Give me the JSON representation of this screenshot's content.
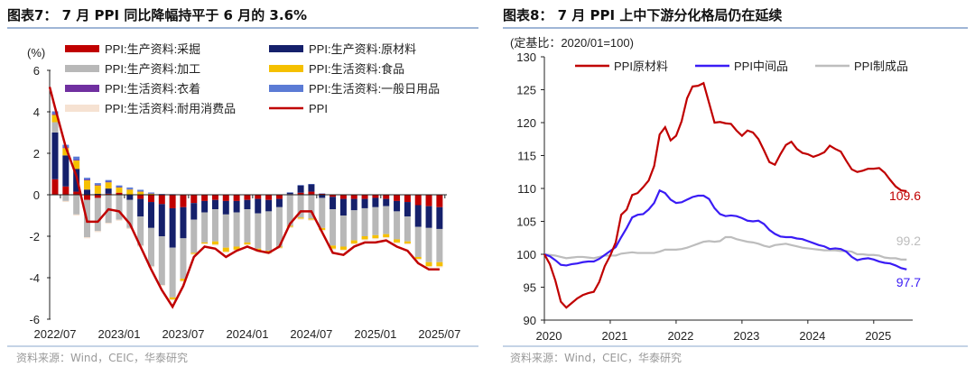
{
  "left": {
    "title": "图表7：  7 月 PPI 同比降幅持平于 6 月的 3.6%",
    "source": "资料来源：Wind，CEIC，华泰研究"
  },
  "right": {
    "title": "图表8：  7 月 PPI 上中下游分化格局仍在延续",
    "source": "资料来源：Wind，CEIC，华泰研究"
  },
  "chart_data": [
    {
      "type": "bar",
      "stacked": true,
      "ylabel": "(%)",
      "ylim": [
        -6,
        6
      ],
      "yticks": [
        -6,
        -4,
        -2,
        0,
        2,
        4,
        6
      ],
      "categories": [
        "2022/07",
        "2022/08",
        "2022/09",
        "2022/10",
        "2022/11",
        "2022/12",
        "2023/01",
        "2023/02",
        "2023/03",
        "2023/04",
        "2023/05",
        "2023/06",
        "2023/07",
        "2023/08",
        "2023/09",
        "2023/10",
        "2023/11",
        "2023/12",
        "2024/01",
        "2024/02",
        "2024/03",
        "2024/04",
        "2024/05",
        "2024/06",
        "2024/07",
        "2024/08",
        "2024/09",
        "2024/10",
        "2024/11",
        "2024/12",
        "2025/01",
        "2025/02",
        "2025/03",
        "2025/04",
        "2025/05",
        "2025/06",
        "2025/07"
      ],
      "xticks": [
        "2022/07",
        "2023/01",
        "2023/07",
        "2024/01",
        "2024/07",
        "2025/01",
        "2025/07"
      ],
      "legend_placement": "top",
      "series": [
        {
          "name": "PPI:生产资料:采掘",
          "color": "#c00000",
          "values": [
            0.75,
            0.4,
            0.15,
            -0.25,
            -0.15,
            0.05,
            0.1,
            0,
            -0.2,
            -0.35,
            -0.45,
            -0.65,
            -0.6,
            -0.4,
            -0.3,
            -0.25,
            -0.3,
            -0.3,
            -0.25,
            -0.2,
            -0.25,
            -0.2,
            0.03,
            0.1,
            0.15,
            0.05,
            -0.1,
            -0.2,
            -0.2,
            -0.2,
            -0.15,
            -0.2,
            -0.3,
            -0.35,
            -0.5,
            -0.55,
            -0.6
          ]
        },
        {
          "name": "PPI:生产资料:原材料",
          "color": "#15206b",
          "values": [
            2.25,
            1.5,
            1.1,
            0.25,
            0.05,
            0.25,
            0,
            -0.25,
            -0.85,
            -1.25,
            -1.55,
            -1.9,
            -1.5,
            -0.8,
            -0.55,
            -0.45,
            -0.65,
            -0.55,
            -0.45,
            -0.7,
            -0.55,
            -0.4,
            0.07,
            0.35,
            0.35,
            -0.15,
            -0.6,
            -0.8,
            -0.55,
            -0.45,
            -0.45,
            -0.35,
            -0.5,
            -0.7,
            -1.05,
            -1.05,
            -1.05
          ]
        },
        {
          "name": "PPI:生产资料:加工",
          "color": "#b8b8b8",
          "values": [
            0.5,
            -0.3,
            -0.95,
            -1.8,
            -1.6,
            -1.35,
            -1.2,
            -1.35,
            -1.4,
            -1.85,
            -2.35,
            -2.4,
            -1.95,
            -1.6,
            -1.45,
            -1.55,
            -1.6,
            -1.65,
            -1.6,
            -1.7,
            -1.9,
            -1.9,
            -1.5,
            -1.1,
            -1.15,
            -1.45,
            -1.75,
            -1.5,
            -1.45,
            -1.35,
            -1.35,
            -1.35,
            -1.35,
            -1.2,
            -1.45,
            -1.65,
            -1.6
          ]
        },
        {
          "name": "PPI:生活资料:食品",
          "color": "#f5c000",
          "values": [
            0.35,
            0.35,
            0.4,
            0.45,
            0.4,
            0.3,
            0.25,
            0.25,
            0.15,
            0.05,
            0,
            -0.1,
            -0.1,
            -0.05,
            -0.05,
            -0.15,
            -0.2,
            -0.15,
            -0.1,
            -0.1,
            -0.1,
            -0.05,
            -0.05,
            -0.05,
            -0.05,
            -0.1,
            -0.15,
            -0.15,
            -0.15,
            -0.15,
            -0.15,
            -0.15,
            -0.15,
            -0.1,
            -0.1,
            -0.2,
            -0.2
          ]
        },
        {
          "name": "PPI:生活资料:衣着",
          "color": "#7030a0",
          "values": [
            0.05,
            0.04,
            0.04,
            0.04,
            0.03,
            0.03,
            0.02,
            0.02,
            0.02,
            0.01,
            0,
            0,
            0,
            0,
            0,
            0,
            0,
            0,
            0,
            0,
            0,
            0,
            0,
            0,
            0,
            0,
            0,
            0,
            0,
            0,
            0,
            0,
            0,
            0,
            0,
            0,
            0
          ]
        },
        {
          "name": "PPI:生活资料:一般日用品",
          "color": "#5b7bd5",
          "values": [
            0.12,
            0.12,
            0.15,
            0.08,
            0.08,
            0.08,
            0.08,
            0.08,
            0.07,
            0.05,
            0.04,
            0.03,
            0.02,
            0.02,
            0.02,
            0.02,
            0.02,
            0.02,
            0.02,
            0.02,
            0.02,
            0.02,
            0.02,
            0.02,
            0.02,
            0.02,
            0.02,
            0.02,
            0.02,
            0.02,
            0.02,
            0.02,
            0.02,
            0.02,
            0.02,
            0.02,
            0.02
          ]
        },
        {
          "name": "PPI:生活资料:耐用消费品",
          "color": "#f6e2d2",
          "values": [
            0.02,
            -0.05,
            -0.05,
            -0.05,
            -0.05,
            -0.05,
            -0.05,
            -0.05,
            -0.05,
            -0.05,
            -0.05,
            -0.05,
            -0.05,
            -0.05,
            -0.05,
            -0.05,
            -0.05,
            -0.05,
            -0.05,
            -0.05,
            -0.05,
            -0.05,
            -0.05,
            -0.05,
            -0.05,
            -0.05,
            -0.05,
            -0.05,
            -0.05,
            -0.05,
            -0.05,
            -0.05,
            -0.05,
            -0.05,
            -0.05,
            -0.05,
            -0.05
          ]
        },
        {
          "name": "PPI",
          "type": "line",
          "color": "#c00000",
          "values": [
            4.2,
            2.3,
            0.9,
            -1.3,
            -1.3,
            -0.7,
            -0.8,
            -1.4,
            -2.5,
            -3.6,
            -4.6,
            -5.4,
            -4.4,
            -3.0,
            -2.5,
            -2.6,
            -3.0,
            -2.7,
            -2.5,
            -2.7,
            -2.8,
            -2.5,
            -1.4,
            -0.8,
            -0.8,
            -1.8,
            -2.8,
            -2.9,
            -2.5,
            -2.3,
            -2.3,
            -2.2,
            -2.5,
            -2.7,
            -3.3,
            -3.6,
            -3.6
          ]
        }
      ]
    },
    {
      "type": "line",
      "ylabel": "(定基比：2020/01=100)",
      "ylim": [
        90,
        130
      ],
      "yticks": [
        90,
        95,
        100,
        105,
        110,
        115,
        120,
        125,
        130
      ],
      "x_start": "2020/01",
      "x_end": "2025/07",
      "xticks": [
        "2020",
        "2021",
        "2022",
        "2023",
        "2024",
        "2025"
      ],
      "legend_placement": "top",
      "series": [
        {
          "name": "PPI原材料",
          "color": "#c00000",
          "end_label": "109.6",
          "values": [
            100,
            98.5,
            96,
            92.8,
            91.9,
            92.6,
            93.3,
            93.8,
            94.1,
            94.3,
            95.8,
            98.2,
            99.8,
            101.8,
            106,
            106.8,
            109,
            109.3,
            110.2,
            111.2,
            113.4,
            118.2,
            119.3,
            117.3,
            118,
            120.2,
            123.7,
            125.5,
            125.6,
            126,
            123,
            120,
            120.1,
            119.9,
            119.8,
            118.8,
            118,
            118.8,
            118.5,
            117.5,
            115.8,
            114,
            113.6,
            115.2,
            116.6,
            117.1,
            116,
            115.4,
            115.2,
            114.8,
            115.1,
            115.5,
            116.5,
            116,
            115.6,
            114.2,
            112.9,
            112.5,
            112.7,
            113,
            113,
            113.1,
            112.4,
            111.3,
            110.3,
            109.7,
            109.6
          ]
        },
        {
          "name": "PPI中间品",
          "color": "#3a1cf5",
          "end_label": "97.7",
          "values": [
            100,
            99.7,
            99.1,
            98.4,
            98.3,
            98.5,
            98.6,
            98.8,
            98.9,
            98.9,
            99.3,
            99.9,
            100.5,
            101.1,
            102.6,
            104,
            105.6,
            106,
            106.1,
            106.8,
            107.8,
            109.7,
            109.3,
            108.3,
            107.8,
            107.9,
            108.3,
            108.7,
            108.9,
            108.9,
            108.4,
            107,
            106.1,
            105.8,
            105.9,
            105.8,
            105.5,
            105.1,
            105,
            105.1,
            104.6,
            103.7,
            103.1,
            102.7,
            102.6,
            102.6,
            102.4,
            102.3,
            102,
            101.7,
            101.4,
            101.2,
            100.8,
            100.9,
            100.8,
            100.4,
            99.6,
            99.1,
            99.3,
            99.4,
            99.2,
            98.9,
            98.7,
            98.6,
            98.3,
            97.9,
            97.7
          ]
        },
        {
          "name": "PPI制成品",
          "color": "#bdbdbd",
          "end_label": "99.2",
          "values": [
            100,
            99.9,
            99.8,
            99.6,
            99.4,
            99.5,
            99.6,
            99.6,
            99.5,
            99.4,
            99.6,
            99.8,
            99.8,
            99.8,
            100.1,
            100.2,
            100.3,
            100.2,
            100.2,
            100.2,
            100.2,
            100.4,
            100.7,
            100.7,
            100.7,
            100.8,
            101,
            101.3,
            101.6,
            101.9,
            102,
            101.9,
            102,
            102.6,
            102.6,
            102.3,
            102.1,
            101.9,
            101.8,
            101.6,
            101.3,
            101.1,
            101.4,
            101.5,
            101.6,
            101.4,
            101.2,
            101,
            100.9,
            100.8,
            100.7,
            100.6,
            100.6,
            100.6,
            100.5,
            100.5,
            100.4,
            100,
            100,
            99.9,
            99.9,
            99.8,
            99.5,
            99.4,
            99.4,
            99.2,
            99.2
          ]
        }
      ]
    }
  ]
}
